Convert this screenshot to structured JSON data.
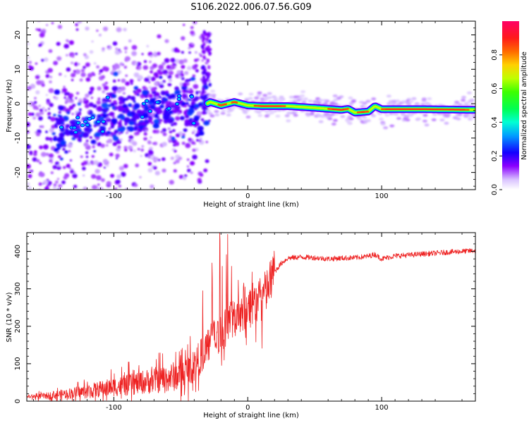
{
  "title": "S106.2022.006.07.56.G09",
  "chart_data": [
    {
      "type": "heatmap",
      "xlabel": "Height of straight line (km)",
      "ylabel": "Frequency (Hz)",
      "xlim": [
        -165,
        170
      ],
      "ylim": [
        -25,
        24
      ],
      "xticks": [
        -100,
        0,
        100
      ],
      "yticks": [
        -20,
        -10,
        0,
        10,
        20
      ],
      "colorbar": {
        "label": "Normalized spectral amplitude",
        "range": [
          0.0,
          1.0
        ],
        "ticks": [
          "0.0",
          "0.2",
          "0.4",
          "0.6",
          "0.8"
        ],
        "colormap": "gist_rainbow_r"
      },
      "ridge": [
        {
          "x": -140,
          "y": -8
        },
        {
          "x": -120,
          "y": -7
        },
        {
          "x": -100,
          "y": -3
        },
        {
          "x": -80,
          "y": -3
        },
        {
          "x": -60,
          "y": -1
        },
        {
          "x": -45,
          "y": -1
        },
        {
          "x": -35,
          "y": -1
        },
        {
          "x": -28,
          "y": 0.5
        },
        {
          "x": -20,
          "y": -0.5
        },
        {
          "x": -10,
          "y": 0.5
        },
        {
          "x": 0,
          "y": -0.5
        },
        {
          "x": 10,
          "y": -0.7
        },
        {
          "x": 30,
          "y": -0.7
        },
        {
          "x": 50,
          "y": -1.2
        },
        {
          "x": 70,
          "y": -1.8
        },
        {
          "x": 75,
          "y": -1.5
        },
        {
          "x": 80,
          "y": -2.6
        },
        {
          "x": 90,
          "y": -2.3
        },
        {
          "x": 95,
          "y": -0.7
        },
        {
          "x": 100,
          "y": -1.6
        },
        {
          "x": 130,
          "y": -1.6
        },
        {
          "x": 170,
          "y": -1.8
        }
      ]
    },
    {
      "type": "line",
      "xlabel": "Height of straight line (km)",
      "ylabel": "SNR (10 * v/v)",
      "xlim": [
        -165,
        170
      ],
      "ylim": [
        0,
        450
      ],
      "xticks": [
        -100,
        0,
        100
      ],
      "yticks": [
        0,
        100,
        200,
        300,
        400
      ],
      "color": "#ee2222",
      "series": [
        {
          "x": [
            -165,
            -150,
            -140,
            -130,
            -120,
            -110,
            -100,
            -90,
            -80,
            -70,
            -60,
            -50,
            -45,
            -40,
            -35,
            -30,
            -25,
            -20,
            -15,
            -10,
            -5,
            0,
            5,
            10,
            15,
            20,
            25,
            30,
            40,
            50,
            60,
            70,
            80,
            90,
            95,
            100,
            110,
            120,
            130,
            140,
            150,
            160,
            170
          ],
          "y": [
            12,
            14,
            18,
            22,
            26,
            32,
            38,
            42,
            50,
            55,
            62,
            70,
            80,
            95,
            120,
            150,
            170,
            180,
            205,
            225,
            240,
            250,
            262,
            270,
            300,
            345,
            368,
            382,
            385,
            383,
            380,
            382,
            383,
            387,
            392,
            380,
            388,
            390,
            393,
            395,
            398,
            400,
            402
          ]
        }
      ]
    }
  ]
}
